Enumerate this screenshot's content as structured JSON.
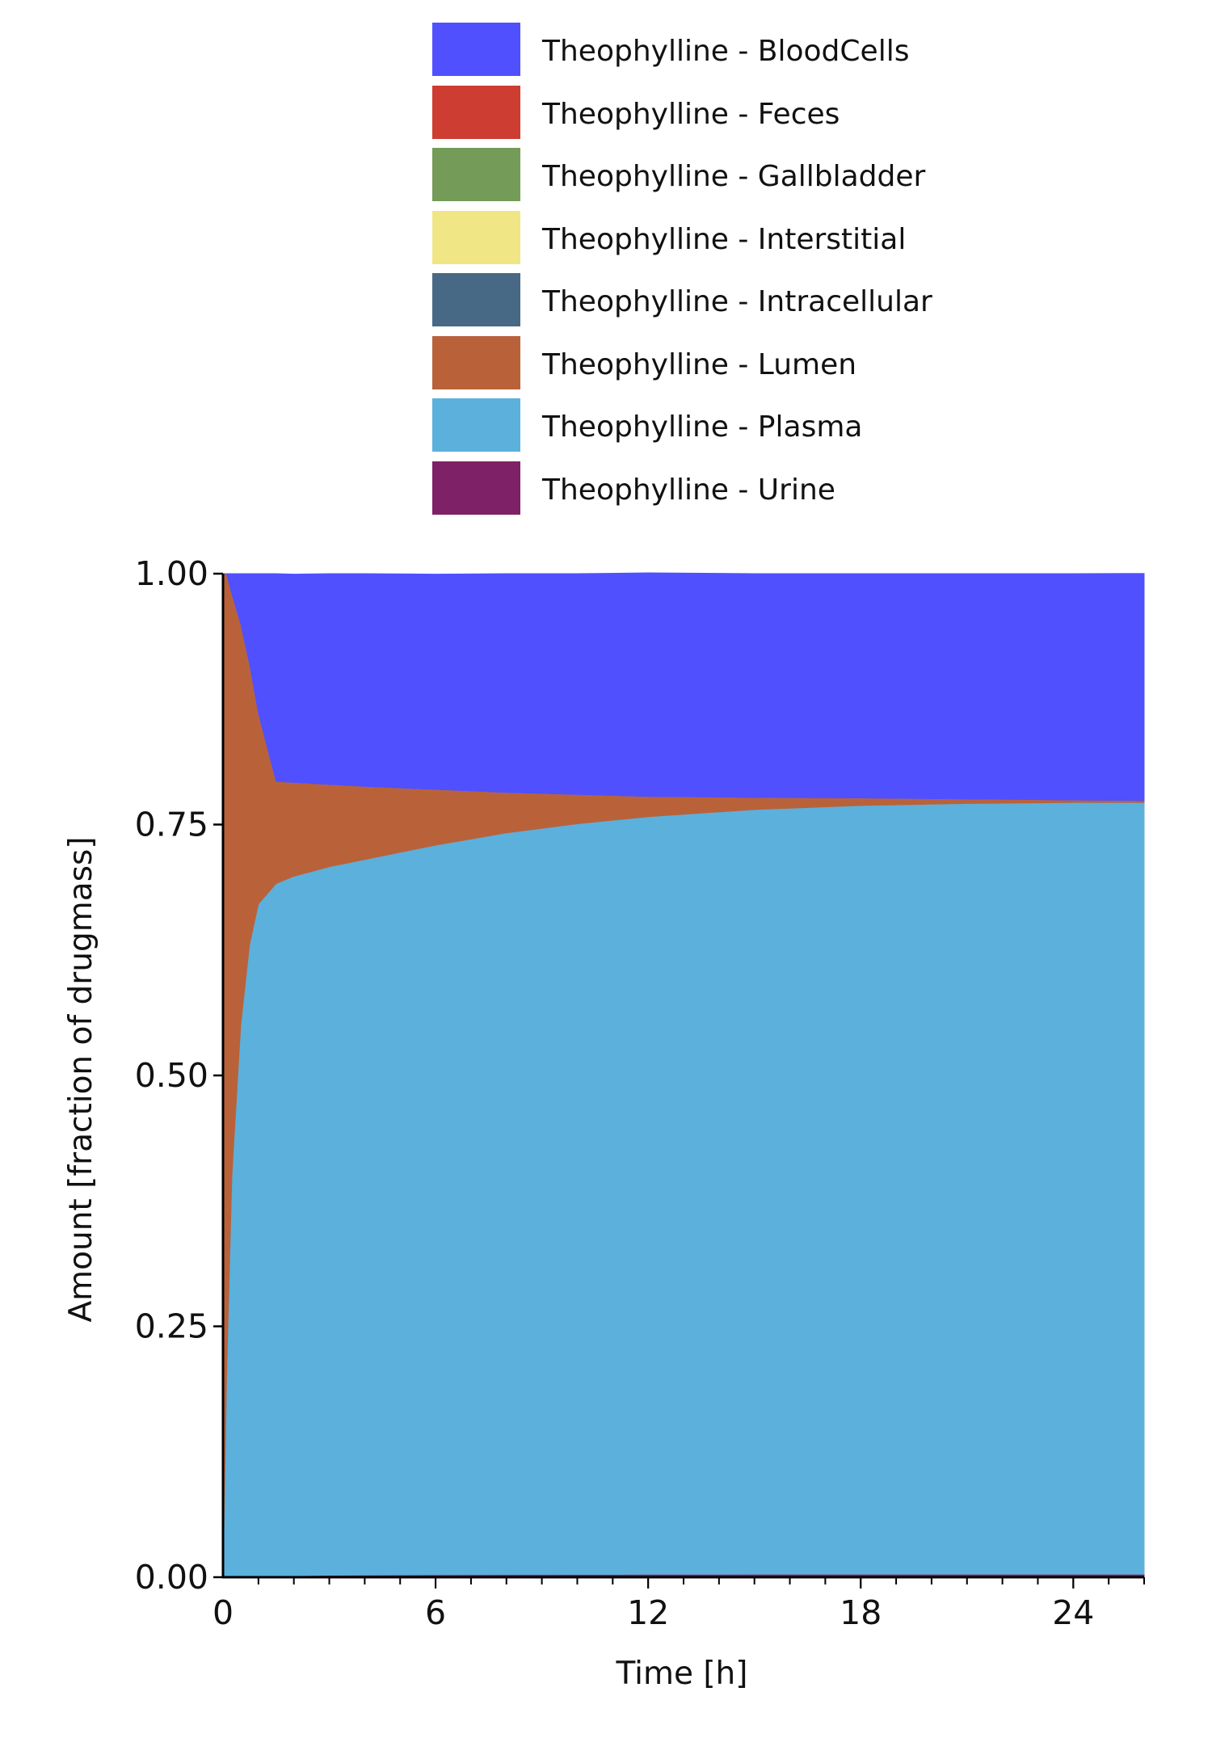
{
  "chart_data": {
    "type": "area",
    "stacked": true,
    "xlabel": "Time [h]",
    "ylabel": "Amount [fraction of drugmass]",
    "xlim": [
      0,
      26
    ],
    "ylim": [
      0,
      1
    ],
    "x_ticks": [
      0,
      6,
      12,
      18,
      24
    ],
    "x_tick_labels": [
      "0",
      "6",
      "12",
      "18",
      "24"
    ],
    "y_ticks": [
      0,
      0.25,
      0.5,
      0.75,
      1
    ],
    "y_tick_labels": [
      "0.00",
      "0.25",
      "0.50",
      "0.75",
      "1.00"
    ],
    "legend_position": "top",
    "x": [
      0,
      0.1,
      0.25,
      0.5,
      0.75,
      1,
      1.5,
      2,
      3,
      4,
      6,
      8,
      10,
      12,
      15,
      18,
      21,
      24,
      26
    ],
    "series": [
      {
        "name": "Theophylline - Urine",
        "color": "#7f2166",
        "values": [
          0,
          0.0001,
          0.0002,
          0.0005,
          0.0007,
          0.001,
          0.0013,
          0.0015,
          0.002,
          0.0022,
          0.0025,
          0.0027,
          0.0028,
          0.0029,
          0.003,
          0.003,
          0.003,
          0.003,
          0.003
        ]
      },
      {
        "name": "Theophylline - Plasma",
        "color": "#5cb0dc",
        "values": [
          0,
          0.2,
          0.4,
          0.55,
          0.63,
          0.67,
          0.69,
          0.697,
          0.706,
          0.713,
          0.727,
          0.739,
          0.748,
          0.755,
          0.762,
          0.766,
          0.768,
          0.769,
          0.769
        ]
      },
      {
        "name": "Theophylline - Lumen",
        "color": "#b9623a",
        "values": [
          1,
          0.7999,
          0.5798,
          0.3995,
          0.2793,
          0.19,
          0.1017,
          0.0935,
          0.082,
          0.0728,
          0.0555,
          0.0403,
          0.0292,
          0.0201,
          0.012,
          0.0075,
          0.0045,
          0.0025,
          0.0018
        ]
      },
      {
        "name": "Theophylline - Intracellular",
        "color": "#476985",
        "values": [
          0,
          0,
          0,
          0,
          0,
          0,
          0,
          0,
          0,
          0,
          0,
          0,
          0,
          0,
          0,
          0,
          0,
          0,
          0
        ]
      },
      {
        "name": "Theophylline - Interstitial",
        "color": "#f0e685",
        "values": [
          0,
          0,
          0,
          0,
          0,
          0,
          0,
          0,
          0,
          0,
          0,
          0,
          0,
          0,
          0,
          0,
          0,
          0,
          0
        ]
      },
      {
        "name": "Theophylline - Gallbladder",
        "color": "#749b58",
        "values": [
          0,
          0,
          0,
          0,
          0,
          0,
          0,
          0,
          0,
          0,
          0,
          0,
          0,
          0,
          0,
          0,
          0,
          0,
          0
        ]
      },
      {
        "name": "Theophylline - Feces",
        "color": "#ce3d32",
        "values": [
          0,
          0,
          0,
          0,
          0,
          0,
          0,
          0,
          0,
          0,
          0,
          0,
          0,
          0,
          0,
          0,
          0,
          0,
          0.0002
        ]
      },
      {
        "name": "Theophylline - BloodCells",
        "color": "#5050ff",
        "values": [
          0,
          0,
          0.02,
          0.05,
          0.09,
          0.139,
          0.207,
          0.2075,
          0.21,
          0.212,
          0.2145,
          0.218,
          0.22,
          0.2228,
          0.223,
          0.2235,
          0.2245,
          0.2255,
          0.2262
        ]
      }
    ],
    "legend_order": [
      "Theophylline - BloodCells",
      "Theophylline - Feces",
      "Theophylline - Gallbladder",
      "Theophylline - Interstitial",
      "Theophylline - Intracellular",
      "Theophylline - Lumen",
      "Theophylline - Plasma",
      "Theophylline - Urine"
    ]
  }
}
